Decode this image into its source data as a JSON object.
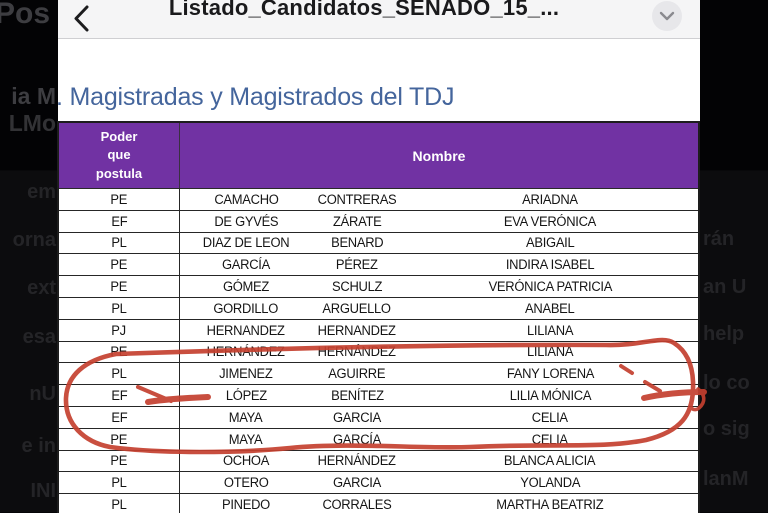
{
  "viewer": {
    "title": "Listado_Candidatos_SENADO_15_...",
    "back_icon": "chevron-left",
    "dropdown_icon": "chevron-down"
  },
  "document": {
    "heading": ". Magistradas y Magistrados del TDJ",
    "table": {
      "col1_header": "Poder que postula",
      "col2_header": "Nombre",
      "rows": [
        [
          "PE",
          "CAMACHO",
          "CONTRERAS",
          "ARIADNA"
        ],
        [
          "EF",
          "DE GYVÉS",
          "ZÁRATE",
          "EVA VERÓNICA"
        ],
        [
          "PL",
          "DIAZ DE LEON",
          "BENARD",
          "ABIGAIL"
        ],
        [
          "PE",
          "GARCÍA",
          "PÉREZ",
          "INDIRA ISABEL"
        ],
        [
          "PE",
          "GÓMEZ",
          "SCHULZ",
          "VERÓNICA PATRICIA"
        ],
        [
          "PL",
          "GORDILLO",
          "ARGUELLO",
          "ANABEL"
        ],
        [
          "PJ",
          "HERNANDEZ",
          "HERNANDEZ",
          "LILIANA"
        ],
        [
          "PE",
          "HERNÁNDEZ",
          "HERNÁNDEZ",
          "LILIANA"
        ],
        [
          "PL",
          "JIMENEZ",
          "AGUIRRE",
          "FANY LORENA"
        ],
        [
          "EF",
          "LÓPEZ",
          "BENÍTEZ",
          "LILIA MÓNICA"
        ],
        [
          "EF",
          "MAYA",
          "GARCIA",
          "CELIA"
        ],
        [
          "PE",
          "MAYA",
          "GARCÍA",
          "CELIA"
        ],
        [
          "PE",
          "OCHOA",
          "HERNÁNDEZ",
          "BLANCA ALICIA"
        ],
        [
          "PL",
          "OTERO",
          "GARCIA",
          "YOLANDA"
        ],
        [
          "PL",
          "PINEDO",
          "CORRALES",
          "MARTHA BEATRIZ"
        ]
      ]
    }
  },
  "annotation": {
    "description": "hand-drawn red circle around rows HERNÁNDEZ–MAYA with arrow at LÓPEZ row and scribbles at right",
    "color": "#c4402f"
  },
  "background": {
    "left_fragments": [
      "Pos",
      "ia M",
      "LMo",
      "em",
      "orna",
      "ext",
      "esa",
      "nU",
      "e in",
      "INI"
    ],
    "right_fragments": [
      "rán",
      "an U",
      "help",
      "lo co",
      "o sig",
      "lanM"
    ]
  },
  "colors": {
    "table_header_purple": "#7132a3",
    "heading_blue": "#44659c",
    "annotation_red": "#c4402f",
    "topbar_bg": "#f5f5f6"
  }
}
